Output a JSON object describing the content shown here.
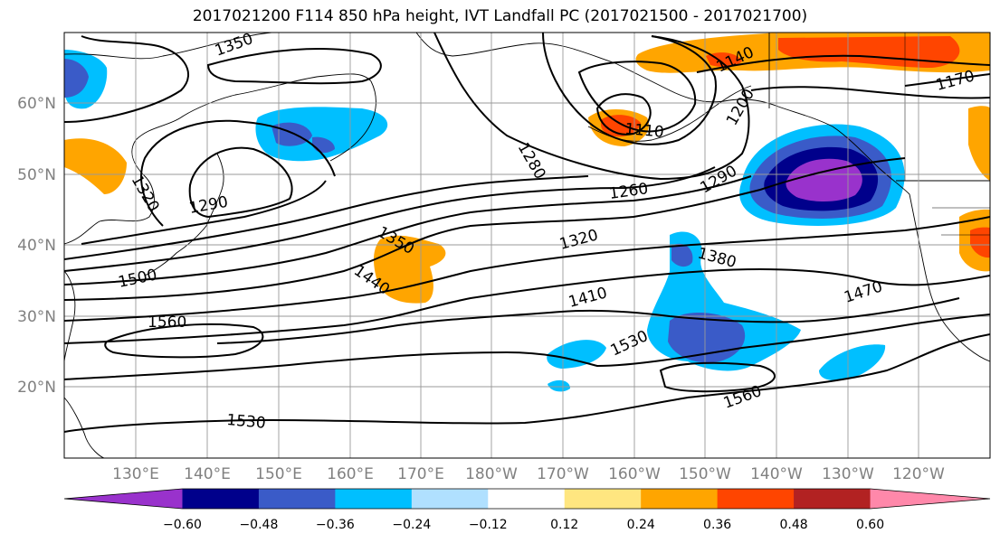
{
  "title": "2017021200 F114 850 hPa height, IVT Landfall PC (2017021500 - 2017021700)",
  "lat_labels": [
    "60°N",
    "50°N",
    "40°N",
    "30°N",
    "20°N"
  ],
  "lon_labels": [
    "130°E",
    "140°E",
    "150°E",
    "160°E",
    "170°E",
    "180°W",
    "170°W",
    "160°W",
    "150°W",
    "140°W",
    "130°W",
    "120°W"
  ],
  "contour_labels": [
    {
      "id": "c1350a",
      "text": "1350"
    },
    {
      "id": "c1320a",
      "text": "1320"
    },
    {
      "id": "c1290a",
      "text": "1290"
    },
    {
      "id": "c1500",
      "text": "1500"
    },
    {
      "id": "c1560a",
      "text": "1560"
    },
    {
      "id": "c1530a",
      "text": "1530"
    },
    {
      "id": "c1350b",
      "text": "1350"
    },
    {
      "id": "c1440",
      "text": "1440"
    },
    {
      "id": "c1280",
      "text": "1280"
    },
    {
      "id": "c1110",
      "text": "1110"
    },
    {
      "id": "c1140",
      "text": "1140"
    },
    {
      "id": "c1200",
      "text": "1200"
    },
    {
      "id": "c1170",
      "text": "1170"
    },
    {
      "id": "c1260",
      "text": "1260"
    },
    {
      "id": "c1290b",
      "text": "1290"
    },
    {
      "id": "c1320b",
      "text": "1320"
    },
    {
      "id": "c1380",
      "text": "1380"
    },
    {
      "id": "c1410",
      "text": "1410"
    },
    {
      "id": "c1470",
      "text": "1470"
    },
    {
      "id": "c1530b",
      "text": "1530"
    },
    {
      "id": "c1560b",
      "text": "1560"
    }
  ],
  "colorbar": {
    "colors": [
      "#9932CC",
      "#00008B",
      "#3A5BC8",
      "#00BFFF",
      "#B0E0FF",
      "#FFFFFF",
      "#FFE680",
      "#FFA500",
      "#FF4500",
      "#B22222",
      "#FF88AA"
    ],
    "ticks": [
      "−0.60",
      "−0.48",
      "−0.36",
      "−0.24",
      "−0.12",
      "0.12",
      "0.24",
      "0.36",
      "0.48",
      "0.60"
    ]
  }
}
